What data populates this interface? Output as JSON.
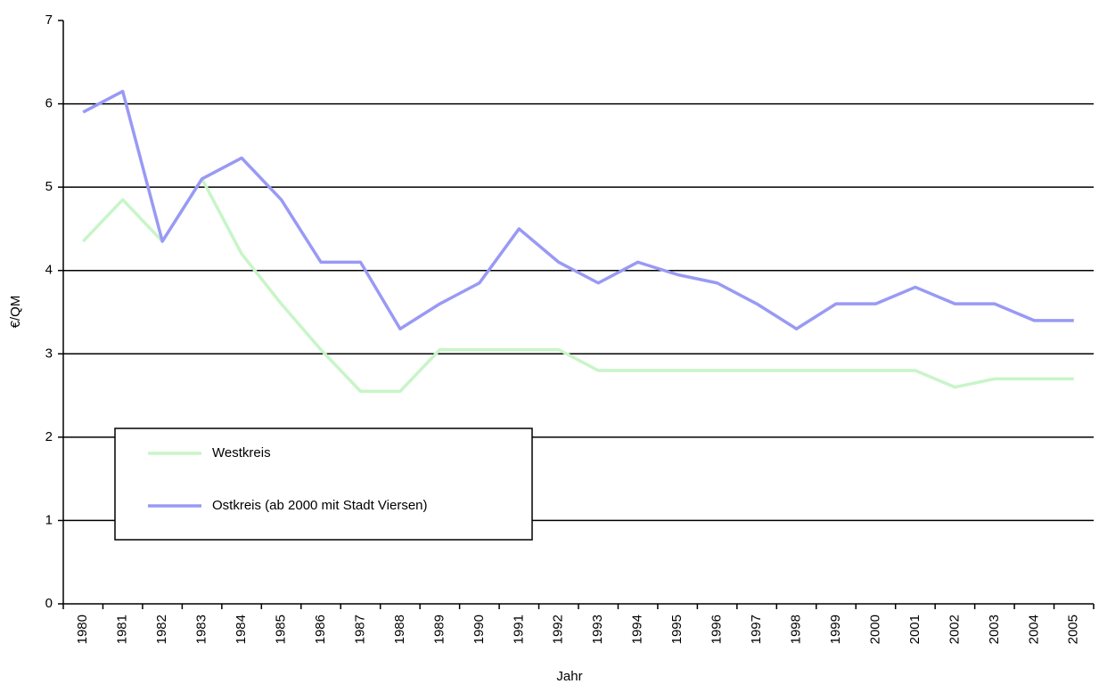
{
  "chart_data": {
    "type": "line",
    "x_label": "Jahr",
    "y_label": "€/QM",
    "categories": [
      "1980",
      "1981",
      "1982",
      "1983",
      "1984",
      "1985",
      "1986",
      "1987",
      "1988",
      "1989",
      "1990",
      "1991",
      "1992",
      "1993",
      "1994",
      "1995",
      "1996",
      "1997",
      "1998",
      "1999",
      "2000",
      "2001",
      "2002",
      "2003",
      "2004",
      "2005"
    ],
    "series": [
      {
        "name": "Westkreis",
        "color": "#c8f5c8",
        "values": [
          4.35,
          4.85,
          4.35,
          5.1,
          4.2,
          3.6,
          3.05,
          2.55,
          2.55,
          3.05,
          3.05,
          3.05,
          3.05,
          2.8,
          2.8,
          2.8,
          2.8,
          2.8,
          2.8,
          2.8,
          2.8,
          2.8,
          2.6,
          2.7,
          2.7,
          2.7
        ]
      },
      {
        "name": "Ostkreis (ab 2000 mit Stadt Viersen)",
        "color": "#9999f5",
        "values": [
          5.9,
          6.15,
          4.35,
          5.1,
          5.35,
          4.85,
          4.1,
          4.1,
          3.3,
          3.6,
          3.85,
          4.5,
          4.1,
          3.85,
          4.1,
          3.95,
          3.85,
          3.6,
          3.3,
          3.6,
          3.6,
          3.8,
          3.6,
          3.6,
          3.4,
          3.4
        ]
      }
    ],
    "ylim": [
      0,
      7
    ],
    "yticks": [
      0,
      1,
      2,
      3,
      4,
      5,
      6,
      7
    ],
    "grid": true,
    "legend": "lower left"
  }
}
